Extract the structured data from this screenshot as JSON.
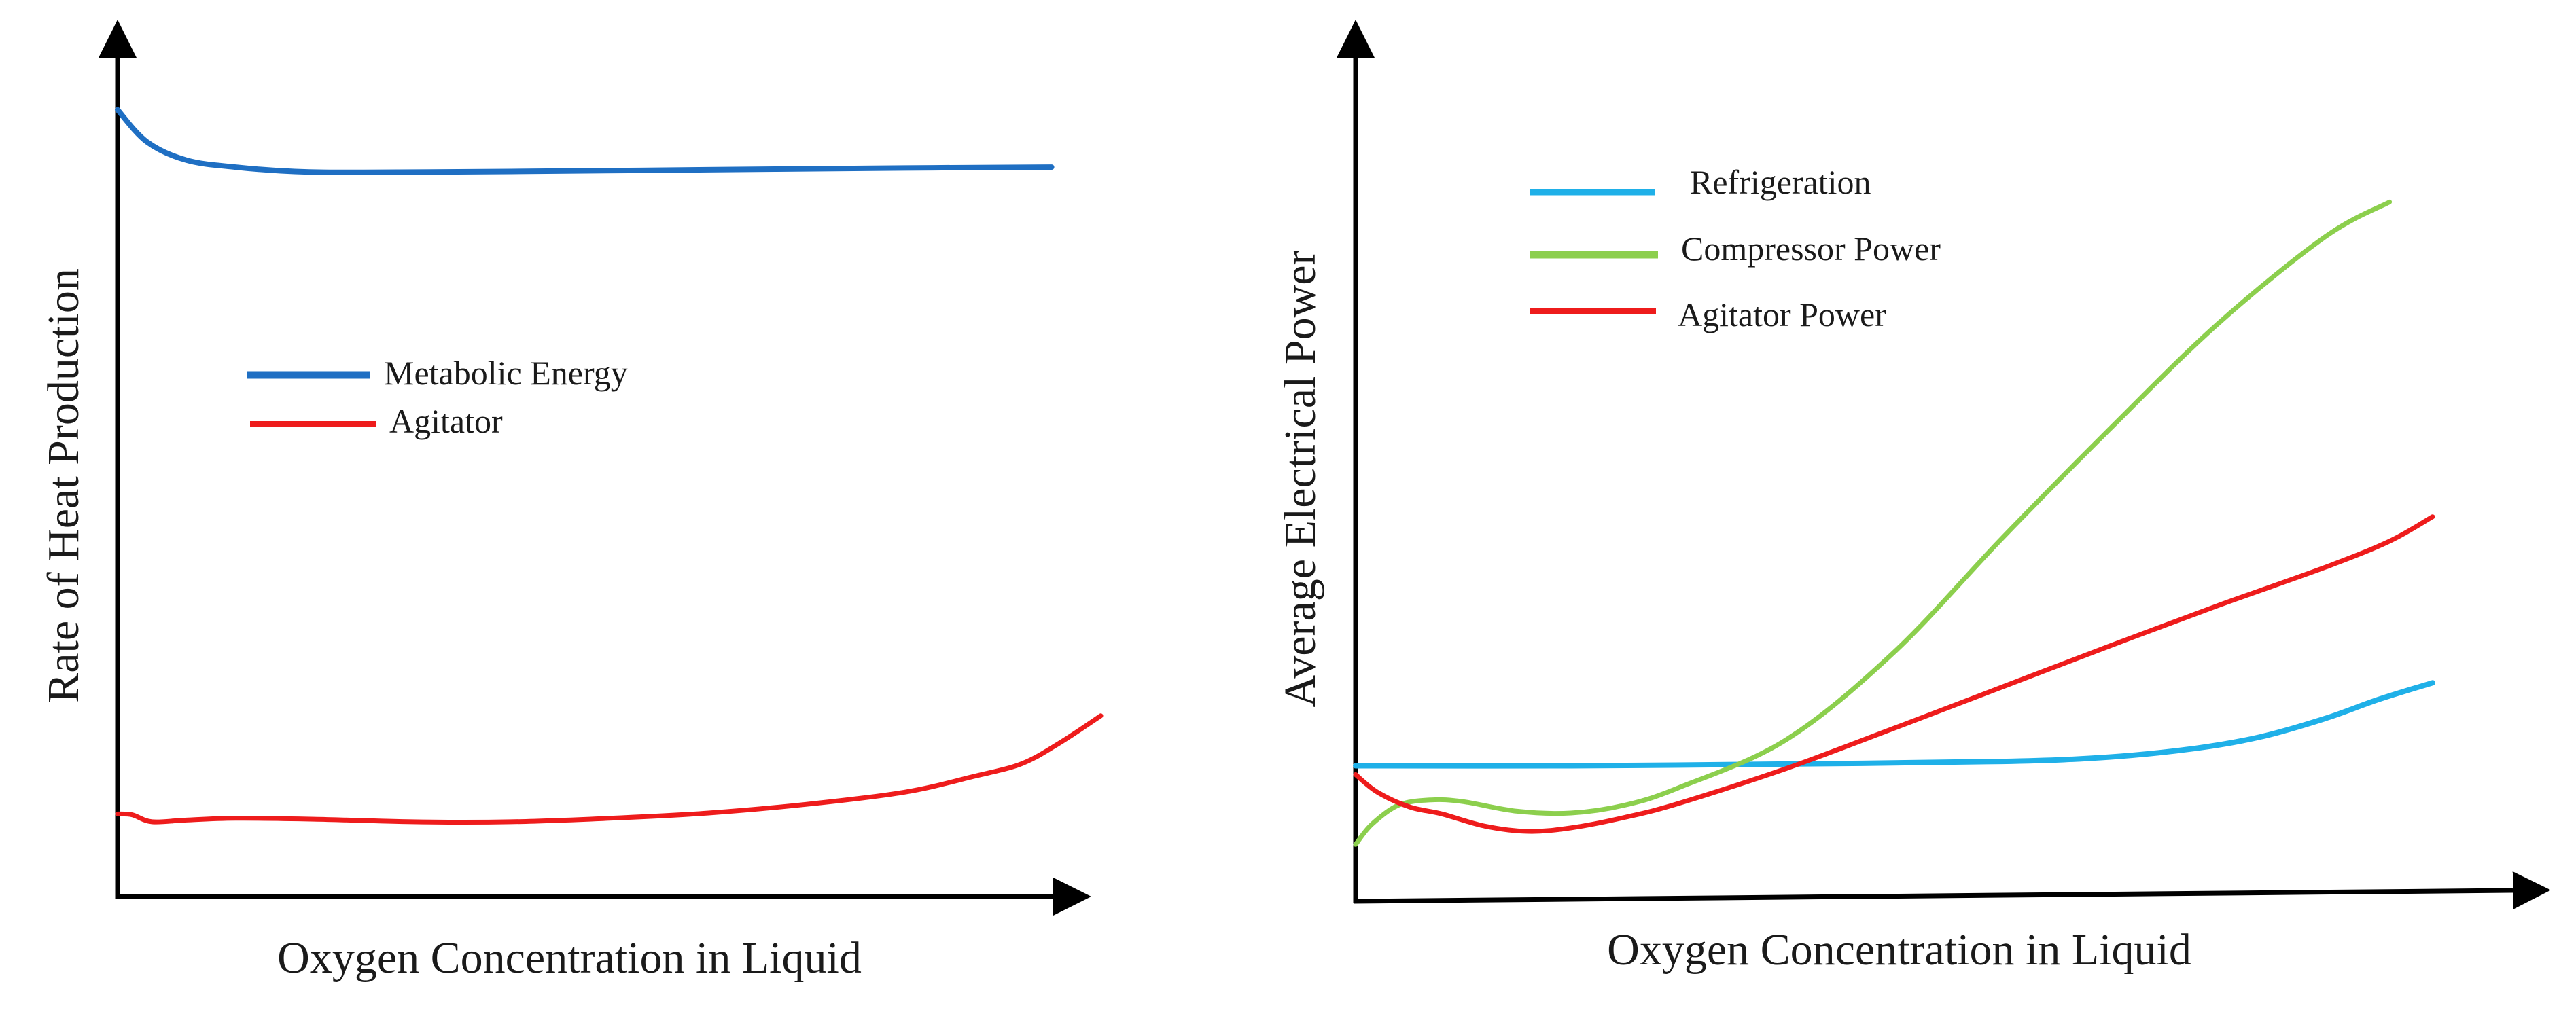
{
  "chart_data": [
    {
      "type": "line",
      "title": "",
      "xlabel": "Oxygen Concentration in Liquid",
      "ylabel": "Rate of Heat Production",
      "xlim": [
        0,
        100
      ],
      "ylim": [
        0,
        100
      ],
      "ticks": "none",
      "grid": false,
      "legend": "center-left",
      "series": [
        {
          "name": "Metabolic Energy",
          "color": "#1f6fc3",
          "x": [
            0,
            3,
            7,
            12,
            18,
            25,
            40,
            60,
            80,
            95
          ],
          "y": [
            90.5,
            86.8,
            84.7,
            83.9,
            83.4,
            83.3,
            83.4,
            83.6,
            83.8,
            83.9
          ]
        },
        {
          "name": "Agitator",
          "color": "#ee1c1c",
          "x": [
            0,
            1.5,
            3.5,
            7,
            12,
            20,
            30,
            40,
            50,
            60,
            70,
            80,
            87,
            92,
            96,
            100
          ],
          "y": [
            9.5,
            9.4,
            8.6,
            8.8,
            9.0,
            8.9,
            8.6,
            8.6,
            9.0,
            9.6,
            10.6,
            12.0,
            13.8,
            15.3,
            17.8,
            20.8
          ]
        }
      ]
    },
    {
      "type": "line",
      "title": "",
      "xlabel": "Oxygen Concentration in Liquid",
      "ylabel": "Average Electrical Power",
      "xlim": [
        0,
        100
      ],
      "ylim": [
        0,
        100
      ],
      "ticks": "none",
      "grid": false,
      "legend": "top-left",
      "series": [
        {
          "name": "Refrigeration",
          "color": "#1fb0e8",
          "x": [
            0,
            20,
            40,
            60,
            70,
            78,
            84,
            90,
            95,
            100
          ],
          "y": [
            15.5,
            15.5,
            15.7,
            16.0,
            16.5,
            17.5,
            18.8,
            20.9,
            23.1,
            25.0
          ]
        },
        {
          "name": "Compressor Power",
          "color": "#8ccf4d",
          "x": [
            0,
            1.5,
            4,
            7,
            10,
            15,
            20,
            25,
            30,
            40,
            50,
            60,
            70,
            80,
            90,
            96
          ],
          "y": [
            6.5,
            8.8,
            11.0,
            11.6,
            11.4,
            10.3,
            10.1,
            11.0,
            13.0,
            18.5,
            28.5,
            41.5,
            54.0,
            66.0,
            76.0,
            80.0
          ]
        },
        {
          "name": "Agitator Power",
          "color": "#ee1c1c",
          "x": [
            0,
            2,
            5,
            8,
            12,
            16,
            20,
            25,
            30,
            40,
            50,
            60,
            70,
            80,
            90,
            96,
            100
          ],
          "y": [
            14.5,
            12.5,
            10.8,
            10.0,
            8.6,
            8.0,
            8.4,
            9.6,
            11.2,
            15.2,
            19.8,
            24.5,
            29.2,
            33.8,
            38.2,
            41.2,
            44.0
          ]
        }
      ]
    }
  ]
}
